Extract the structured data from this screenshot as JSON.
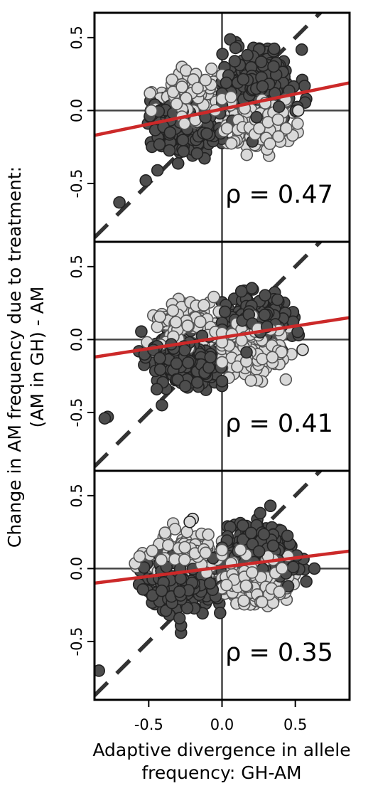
{
  "chart_data": {
    "type": "scatter",
    "xlabel": [
      "Adaptive divergence in allele",
      "frequency: GH-AM"
    ],
    "ylabel": [
      "Change in AM frequency due to treatment:",
      "(AM in GH) - AM"
    ],
    "xlim": [
      -0.87,
      0.87
    ],
    "ylim": [
      -0.9,
      0.67
    ],
    "x_ticks": [
      -0.5,
      0.0,
      0.5
    ],
    "x_tick_labels": [
      "-0.5",
      "0.0",
      "0.5"
    ],
    "y_ticks": [
      -0.5,
      0.0,
      0.5
    ],
    "y_tick_labels": [
      "-0.5",
      "0.0",
      "0.5"
    ],
    "reference_lines": {
      "identity_dashed": true,
      "x_zero": true,
      "y_zero": true
    },
    "colors": {
      "dark_points": "#4d4d4d",
      "light_points": "#d9d9d9",
      "point_edge": "#222222",
      "regression": "#cc2929",
      "identity": "#333333"
    },
    "panels": [
      {
        "rho_label": "ρ = 0.47",
        "regression": {
          "x": [
            -0.87,
            0.87
          ],
          "y": [
            -0.17,
            0.19
          ]
        },
        "clusters": [
          {
            "shade": "dark",
            "cx": 0.25,
            "cy": 0.16,
            "sx": 0.12,
            "sy": 0.11,
            "n": 340,
            "r": [
              0.0,
              0.62
            ],
            "max": [
              0.33,
              0.38
            ]
          },
          {
            "shade": "light",
            "cx": 0.22,
            "cy": -0.08,
            "sx": 0.11,
            "sy": 0.08,
            "n": 200,
            "r": [
              0.0,
              0.6
            ],
            "max": [
              0.3,
              0.24
            ]
          },
          {
            "shade": "light",
            "cx": -0.2,
            "cy": 0.09,
            "sx": 0.11,
            "sy": 0.08,
            "n": 190,
            "r": [
              -0.6,
              0.0
            ],
            "max": [
              0.3,
              0.22
            ]
          },
          {
            "shade": "dark",
            "cx": -0.24,
            "cy": -0.1,
            "sx": 0.12,
            "sy": 0.09,
            "n": 280,
            "r": [
              -0.62,
              0.0
            ],
            "max": [
              0.33,
              0.28
            ]
          }
        ],
        "outliers": [
          {
            "shade": "dark",
            "x": -0.7,
            "y": -0.63
          },
          {
            "shade": "dark",
            "x": -0.52,
            "y": -0.48
          },
          {
            "shade": "dark",
            "x": -0.44,
            "y": -0.41
          },
          {
            "shade": "light",
            "x": 0.52,
            "y": 0.0
          }
        ]
      },
      {
        "rho_label": "ρ = 0.41",
        "regression": {
          "x": [
            -0.87,
            0.87
          ],
          "y": [
            -0.12,
            0.15
          ]
        },
        "clusters": [
          {
            "shade": "dark",
            "cx": 0.23,
            "cy": 0.1,
            "sx": 0.11,
            "sy": 0.09,
            "n": 300,
            "r": [
              0.0,
              0.6
            ],
            "max": [
              0.3,
              0.26
            ]
          },
          {
            "shade": "light",
            "cx": 0.2,
            "cy": -0.06,
            "sx": 0.12,
            "sy": 0.09,
            "n": 240,
            "r": [
              0.0,
              0.6
            ],
            "max": [
              0.3,
              0.23
            ]
          },
          {
            "shade": "light",
            "cx": -0.22,
            "cy": 0.08,
            "sx": 0.11,
            "sy": 0.08,
            "n": 200,
            "r": [
              -0.6,
              0.0
            ],
            "max": [
              0.3,
              0.22
            ]
          },
          {
            "shade": "dark",
            "cx": -0.24,
            "cy": -0.12,
            "sx": 0.13,
            "sy": 0.09,
            "n": 280,
            "r": [
              -0.62,
              0.0
            ],
            "max": [
              0.33,
              0.24
            ]
          }
        ],
        "outliers": [
          {
            "shade": "dark",
            "x": -0.78,
            "y": -0.53
          },
          {
            "shade": "dark",
            "x": -0.8,
            "y": -0.54
          },
          {
            "shade": "dark",
            "x": -0.41,
            "y": -0.45
          },
          {
            "shade": "light",
            "x": 0.55,
            "y": -0.07
          },
          {
            "shade": "dark",
            "x": 0.02,
            "y": 0.19
          }
        ]
      },
      {
        "rho_label": "ρ = 0.35",
        "regression": {
          "x": [
            -0.87,
            0.87
          ],
          "y": [
            -0.1,
            0.12
          ]
        },
        "clusters": [
          {
            "shade": "dark",
            "cx": 0.25,
            "cy": 0.08,
            "sx": 0.12,
            "sy": 0.1,
            "n": 320,
            "r": [
              0.0,
              0.62
            ],
            "max": [
              0.33,
              0.27
            ]
          },
          {
            "shade": "light",
            "cx": 0.2,
            "cy": -0.07,
            "sx": 0.12,
            "sy": 0.08,
            "n": 240,
            "r": [
              0.0,
              0.6
            ],
            "max": [
              0.3,
              0.2
            ]
          },
          {
            "shade": "light",
            "cx": -0.25,
            "cy": 0.07,
            "sx": 0.13,
            "sy": 0.08,
            "n": 220,
            "r": [
              -0.62,
              0.0
            ],
            "max": [
              0.35,
              0.24
            ]
          },
          {
            "shade": "dark",
            "cx": -0.27,
            "cy": -0.1,
            "sx": 0.12,
            "sy": 0.09,
            "n": 260,
            "r": [
              -0.62,
              0.0
            ],
            "max": [
              0.3,
              0.22
            ]
          }
        ],
        "outliers": [
          {
            "shade": "dark",
            "x": -0.84,
            "y": -0.7
          },
          {
            "shade": "dark",
            "x": -0.28,
            "y": -0.44
          },
          {
            "shade": "dark",
            "x": -0.28,
            "y": -0.39
          },
          {
            "shade": "dark",
            "x": -0.29,
            "y": -0.34
          },
          {
            "shade": "dark",
            "x": 0.33,
            "y": 0.43
          },
          {
            "shade": "dark",
            "x": 0.26,
            "y": 0.38
          },
          {
            "shade": "light",
            "x": -0.2,
            "y": 0.34
          },
          {
            "shade": "light",
            "x": -0.22,
            "y": 0.32
          },
          {
            "shade": "dark",
            "x": 0.63,
            "y": 0.0
          }
        ]
      }
    ]
  }
}
